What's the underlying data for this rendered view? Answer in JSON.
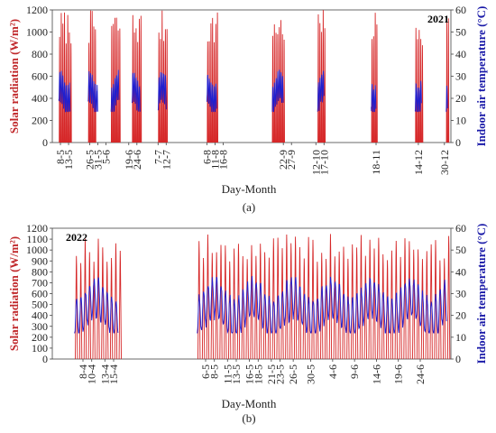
{
  "chart_data": [
    {
      "type": "line",
      "panel": "a",
      "caption": "(a)",
      "year_label": "2021",
      "xlabel": "Day-Month",
      "ylabel_left": "Solar radiation (W/m²)",
      "ylabel_right": "Indoor air temperature (°C)",
      "ylim_left": [
        0,
        1200
      ],
      "yticks_left": [
        "0",
        "200",
        "400",
        "600",
        "800",
        "1000",
        "1200"
      ],
      "ylim_right": [
        0,
        60
      ],
      "yticks_right": [
        "0",
        "10",
        "20",
        "30",
        "40",
        "50",
        "60"
      ],
      "xlim_days": [
        123,
        368
      ],
      "xticks": [
        {
          "label": "8-5",
          "day": 128
        },
        {
          "label": "13-5",
          "day": 133
        },
        {
          "label": "26-5",
          "day": 146
        },
        {
          "label": "31-5",
          "day": 151
        },
        {
          "label": "5-6",
          "day": 156
        },
        {
          "label": "19-6",
          "day": 170
        },
        {
          "label": "24-6",
          "day": 175
        },
        {
          "label": "7-7",
          "day": 188
        },
        {
          "label": "12-7",
          "day": 193
        },
        {
          "label": "6-8",
          "day": 218
        },
        {
          "label": "11-8",
          "day": 223
        },
        {
          "label": "16-8",
          "day": 228
        },
        {
          "label": "22-9",
          "day": 265
        },
        {
          "label": "27-9",
          "day": 270
        },
        {
          "label": "12-10",
          "day": 285
        },
        {
          "label": "17-10",
          "day": 290
        },
        {
          "label": "18-11",
          "day": 322
        },
        {
          "label": "14-12",
          "day": 348
        },
        {
          "label": "30-12",
          "day": 364
        }
      ],
      "series": [
        {
          "name": "Solar radiation",
          "color": "#d62728",
          "segments": [
            [
              127,
              134
            ],
            [
              145,
              149
            ],
            [
              159,
              164
            ],
            [
              172,
              177
            ],
            [
              188,
              193
            ],
            [
              218,
              224
            ],
            [
              258,
              265
            ],
            [
              286,
              290
            ],
            [
              319,
              322
            ],
            [
              346,
              350
            ],
            [
              365,
              366
            ]
          ],
          "daily_peak_range": [
            880,
            1200
          ]
        },
        {
          "name": "Indoor air temperature",
          "color": "#1f1fcf",
          "segments": [
            [
              127,
              134
            ],
            [
              145,
              151
            ],
            [
              159,
              164
            ],
            [
              172,
              177
            ],
            [
              188,
              193
            ],
            [
              218,
              224
            ],
            [
              258,
              265
            ],
            [
              286,
              290
            ],
            [
              319,
              322
            ],
            [
              346,
              350
            ],
            [
              365,
              366
            ]
          ],
          "daily_range": [
            14,
            37
          ]
        }
      ]
    },
    {
      "type": "line",
      "panel": "b",
      "caption": "(b)",
      "year_label": "2022",
      "xlabel": "Day-Month",
      "ylabel_left": "Solar radiation (W/m²)",
      "ylabel_right": "Indoor air temperature (°C)",
      "ylim_left": [
        0,
        1200
      ],
      "yticks_left": [
        "0",
        "100",
        "200",
        "300",
        "400",
        "500",
        "600",
        "700",
        "800",
        "900",
        "1000",
        "1100",
        "1200"
      ],
      "ylim_right": [
        0,
        60
      ],
      "yticks_right": [
        "0",
        "10",
        "20",
        "30",
        "40",
        "50",
        "60"
      ],
      "xlim_days": [
        91,
        182
      ],
      "xticks": [
        {
          "label": "8-4",
          "day": 98
        },
        {
          "label": "10-4",
          "day": 100
        },
        {
          "label": "13-4",
          "day": 103
        },
        {
          "label": "15-4",
          "day": 105
        },
        {
          "label": "6-5",
          "day": 126
        },
        {
          "label": "8-5",
          "day": 128
        },
        {
          "label": "11-5",
          "day": 131
        },
        {
          "label": "13-5",
          "day": 133
        },
        {
          "label": "16-5",
          "day": 136
        },
        {
          "label": "18-5",
          "day": 138
        },
        {
          "label": "21-5",
          "day": 141
        },
        {
          "label": "23-5",
          "day": 143
        },
        {
          "label": "26-5",
          "day": 146
        },
        {
          "label": "30-5",
          "day": 150
        },
        {
          "label": "4-6",
          "day": 155
        },
        {
          "label": "9-6",
          "day": 160
        },
        {
          "label": "14-6",
          "day": 165
        },
        {
          "label": "19-6",
          "day": 170
        },
        {
          "label": "24-6",
          "day": 175
        }
      ],
      "series": [
        {
          "name": "Solar radiation",
          "color": "#d62728",
          "segments": [
            [
              96,
              106
            ],
            [
              124,
              181
            ]
          ],
          "daily_peak_range": [
            880,
            1150
          ]
        },
        {
          "name": "Indoor air temperature",
          "color": "#1f1fcf",
          "segments": [
            [
              96,
              106
            ],
            [
              124,
              181
            ]
          ],
          "daily_range": [
            12,
            44
          ]
        }
      ]
    }
  ]
}
